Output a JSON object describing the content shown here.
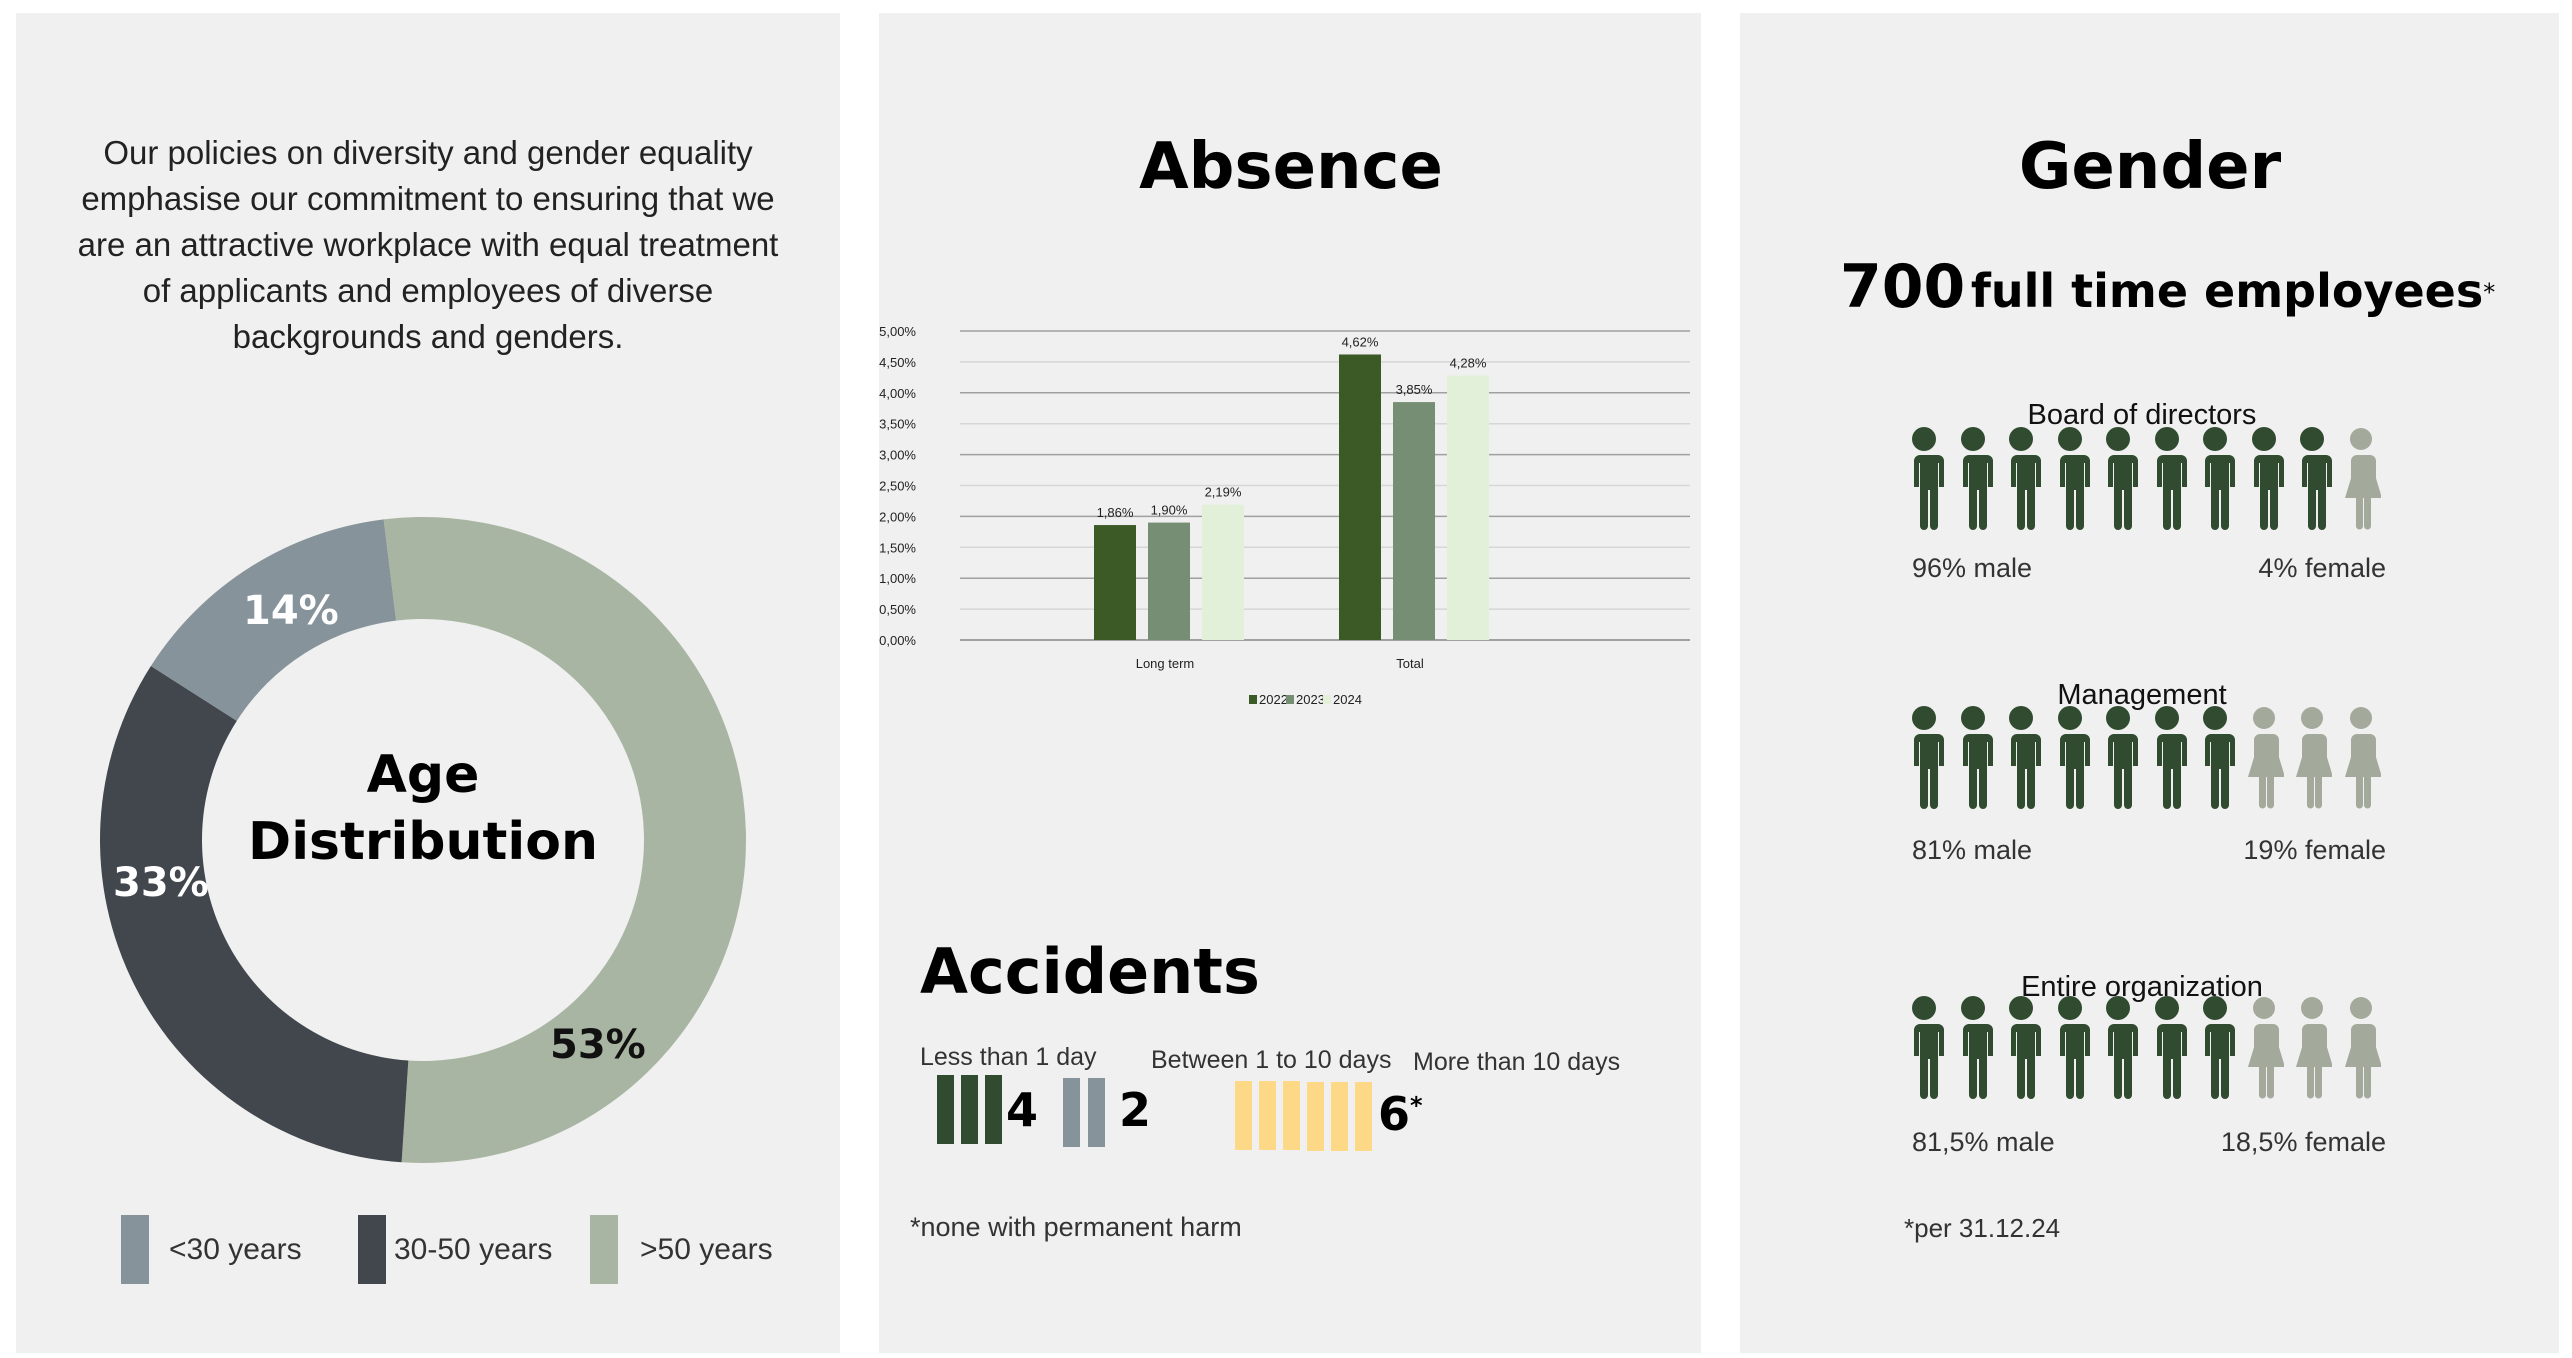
{
  "left": {
    "intro": "Our policies on diversity and gender equality emphasise our commitment to ensuring that we are an attractive workplace with equal treatment of applicants and employees of diverse backgrounds and genders.",
    "donut_title_1": "Age",
    "donut_title_2": "Distribution",
    "segments": [
      {
        "label": "<30 years",
        "value": 14,
        "text": "14%",
        "color": "#87939a"
      },
      {
        "label": "30-50 years",
        "value": 33,
        "text": "33%",
        "color": "#41474c"
      },
      {
        "label": ">50 years",
        "value": 53,
        "text": "53%",
        "color": "#a9b5a3"
      }
    ]
  },
  "absence": {
    "title": "Absence"
  },
  "chart_data": {
    "type": "bar",
    "categories": [
      "Long term",
      "Total"
    ],
    "series": [
      {
        "name": "2022",
        "values": [
          1.86,
          4.62
        ],
        "labels": [
          "1,86%",
          "4,62%"
        ],
        "color": "#3b5a26"
      },
      {
        "name": "2023",
        "values": [
          1.9,
          3.85
        ],
        "labels": [
          "1,90%",
          "3,85%"
        ],
        "color": "#768f74"
      },
      {
        "name": "2024",
        "values": [
          2.19,
          4.28
        ],
        "labels": [
          "2,19%",
          "4,28%"
        ],
        "color": "#e2efd9"
      }
    ],
    "ylim": [
      0,
      5
    ],
    "yticks": [
      "0,00%",
      "0,50%",
      "1,00%",
      "1,50%",
      "2,00%",
      "2,50%",
      "3,00%",
      "3,50%",
      "4,00%",
      "4,50%",
      "5,00%"
    ],
    "grid": true,
    "legend": "bottom"
  },
  "accidents": {
    "title": "Accidents",
    "groups": [
      {
        "label": "Less than 1 day",
        "value": "4",
        "color": "#304b2f"
      },
      {
        "label": "Between 1 to 10 days",
        "value": "2",
        "color": "#87939a"
      },
      {
        "label": "More than 10 days",
        "value": "6",
        "note": "*",
        "color": "#fdd886"
      }
    ],
    "footnote": "*none with permanent harm"
  },
  "gender": {
    "title": "Gender",
    "employees_number": "700",
    "employees_text": "full time employees",
    "employees_mark": "*",
    "male_color": "#304b2f",
    "female_color": "#a3aa9c",
    "rows": [
      {
        "title": "Board of directors",
        "male_icons": 9,
        "female_icons": 1,
        "male": "96% male",
        "female": "4% female"
      },
      {
        "title": "Management",
        "male_icons": 7,
        "female_icons": 3,
        "male": "81% male",
        "female": "19% female"
      },
      {
        "title": "Entire organization",
        "male_icons": 7,
        "female_icons": 3,
        "male": "81,5% male",
        "female": "18,5% female"
      }
    ],
    "footnote": "*per 31.12.24"
  }
}
